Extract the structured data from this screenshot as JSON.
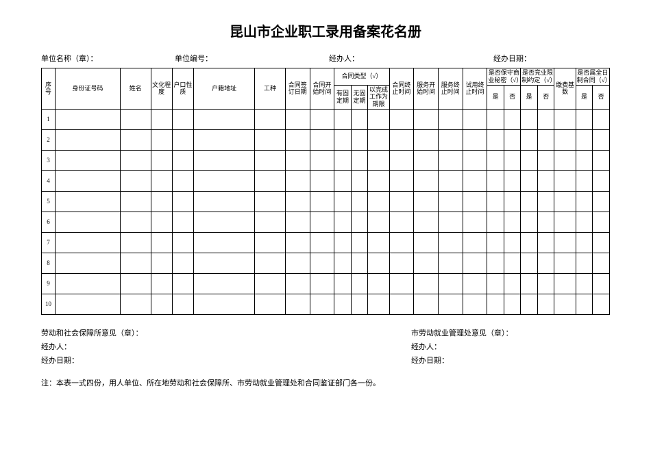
{
  "title": "昆山市企业职工录用备案花名册",
  "meta": {
    "unit_name_label": "单位名称（章）：",
    "unit_code_label": "单位编号：",
    "handler_label": "经办人：",
    "handle_date_label": "经办日期："
  },
  "headers": {
    "seq": "序号",
    "id_number": "身份证号码",
    "name": "姓名",
    "education": "文化程度",
    "hukou_type": "户口性质",
    "hukou_addr": "户籍地址",
    "job_type": "工种",
    "sign_date": "合同签订日期",
    "start_date": "合同开始时间",
    "contract_type": "合同类型（√）",
    "ct_fixed": "有固定期",
    "ct_nofixed": "无固定期",
    "ct_task": "以完成工作为期限",
    "end_date": "合同终止时间",
    "svc_start": "服务开始时间",
    "svc_end": "服务终止时间",
    "probation_end": "试用终止时间",
    "secret": "是否保守商业秘密（√）",
    "compete": "是否竞业限制约定（√）",
    "yes": "是",
    "no": "否",
    "pay_base": "缴费基数",
    "fulltime": "是否属全日制合同（√）"
  },
  "rows": [
    "1",
    "2",
    "3",
    "4",
    "5",
    "6",
    "7",
    "8",
    "9",
    "10"
  ],
  "footer": {
    "left_opinion": "劳动和社会保障所意见（章）：",
    "right_opinion": "市劳动就业管理处意见（章）：",
    "handler": "经办人：",
    "handle_date": "经办日期：",
    "note": "注：本表一式四份，用人单位、所在地劳动和社会保障所、市劳动就业管理处和合同鉴证部门各一份。"
  },
  "col_widths": {
    "seq": 18,
    "id": 85,
    "name": 40,
    "edu": 28,
    "hukou_type": 28,
    "hukou_addr": 80,
    "job": 40,
    "sign": 32,
    "start": 32,
    "ct1": 22,
    "ct2": 22,
    "ct3": 28,
    "end": 32,
    "svc_s": 32,
    "svc_e": 32,
    "prob": 32,
    "yn": 22,
    "base": 28
  }
}
